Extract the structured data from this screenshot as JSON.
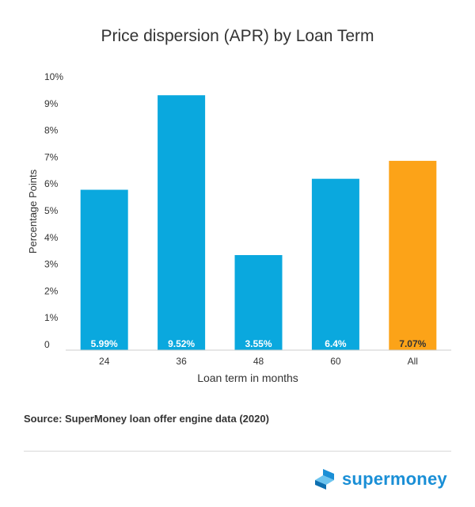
{
  "chart_data": {
    "type": "bar",
    "title": "Price dispersion (APR) by Loan Term",
    "xlabel": "Loan term in months",
    "ylabel": "Percentage Points",
    "categories": [
      "24",
      "36",
      "48",
      "60",
      "All"
    ],
    "values": [
      5.99,
      9.52,
      3.55,
      6.4,
      7.07
    ],
    "data_labels": [
      "5.99%",
      "9.52%",
      "3.55%",
      "6.4%",
      "7.07%"
    ],
    "yticks": [
      "0",
      "1%",
      "2%",
      "3%",
      "4%",
      "5%",
      "6%",
      "7%",
      "8%",
      "9%",
      "10%"
    ],
    "ylim": [
      0,
      10
    ],
    "grid": false,
    "colors": {
      "bar": "#0aa8de",
      "highlight": "#fca318",
      "label_on_bar": "#ffffff",
      "label_on_highlight": "#333333"
    },
    "highlight_category": "All"
  },
  "source": "Source: SuperMoney loan offer engine data (2020)",
  "brand": {
    "name": "supermoney",
    "icon": "supermoney-logo-icon",
    "color": "#1a8fd6"
  }
}
